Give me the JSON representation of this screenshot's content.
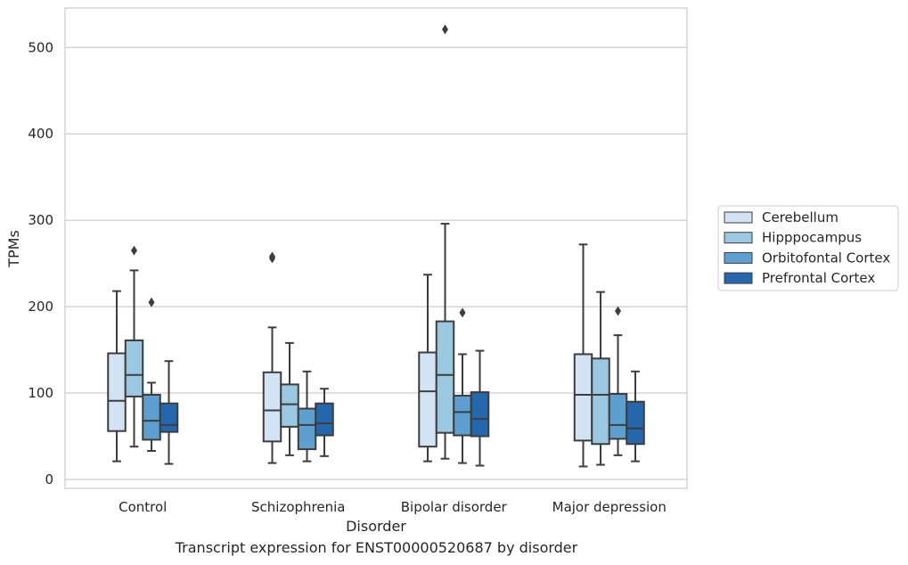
{
  "caption": "Transcript expression for ENST00000520687 by disorder",
  "chart_data": {
    "type": "box",
    "xlabel": "Disorder",
    "ylabel": "TPMs",
    "categories": [
      "Control",
      "Schizophrenia",
      "Bipolar disorder",
      "Major depression"
    ],
    "ylim": [
      -10,
      545
    ],
    "yticks": [
      0,
      100,
      200,
      300,
      400,
      500
    ],
    "grid": "horizontal",
    "legend_position": "right",
    "series": [
      {
        "name": "Cerebellum",
        "color": "#d2e3f3",
        "boxes": [
          {
            "whisker_low": 21,
            "q1": 56,
            "median": 91,
            "q3": 146,
            "whisker_high": 218,
            "outliers": []
          },
          {
            "whisker_low": 19,
            "q1": 44,
            "median": 80,
            "q3": 124,
            "whisker_high": 176,
            "outliers": [
              256,
              258
            ]
          },
          {
            "whisker_low": 21,
            "q1": 38,
            "median": 102,
            "q3": 147,
            "whisker_high": 237,
            "outliers": []
          },
          {
            "whisker_low": 15,
            "q1": 45,
            "median": 98,
            "q3": 145,
            "whisker_high": 272,
            "outliers": []
          }
        ]
      },
      {
        "name": "Hipppocampus",
        "color": "#9ac8e0",
        "boxes": [
          {
            "whisker_low": 38,
            "q1": 96,
            "median": 121,
            "q3": 161,
            "whisker_high": 242,
            "outliers": [
              265
            ]
          },
          {
            "whisker_low": 28,
            "q1": 61,
            "median": 87,
            "q3": 110,
            "whisker_high": 158,
            "outliers": []
          },
          {
            "whisker_low": 24,
            "q1": 54,
            "median": 121,
            "q3": 183,
            "whisker_high": 296,
            "outliers": [
              521
            ]
          },
          {
            "whisker_low": 17,
            "q1": 41,
            "median": 98,
            "q3": 140,
            "whisker_high": 217,
            "outliers": []
          }
        ]
      },
      {
        "name": "Orbitofontal Cortex",
        "color": "#5da0cf",
        "boxes": [
          {
            "whisker_low": 33,
            "q1": 46,
            "median": 68,
            "q3": 98,
            "whisker_high": 112,
            "outliers": [
              205
            ]
          },
          {
            "whisker_low": 21,
            "q1": 35,
            "median": 63,
            "q3": 82,
            "whisker_high": 125,
            "outliers": []
          },
          {
            "whisker_low": 19,
            "q1": 51,
            "median": 78,
            "q3": 97,
            "whisker_high": 145,
            "outliers": [
              193
            ]
          },
          {
            "whisker_low": 28,
            "q1": 47,
            "median": 63,
            "q3": 99,
            "whisker_high": 167,
            "outliers": [
              195
            ]
          }
        ]
      },
      {
        "name": "Prefrontal Cortex",
        "color": "#2467ad",
        "boxes": [
          {
            "whisker_low": 18,
            "q1": 55,
            "median": 63,
            "q3": 88,
            "whisker_high": 137,
            "outliers": []
          },
          {
            "whisker_low": 27,
            "q1": 51,
            "median": 65,
            "q3": 88,
            "whisker_high": 105,
            "outliers": []
          },
          {
            "whisker_low": 16,
            "q1": 50,
            "median": 70,
            "q3": 101,
            "whisker_high": 149,
            "outliers": []
          },
          {
            "whisker_low": 21,
            "q1": 41,
            "median": 59,
            "q3": 90,
            "whisker_high": 125,
            "outliers": []
          }
        ]
      }
    ]
  }
}
